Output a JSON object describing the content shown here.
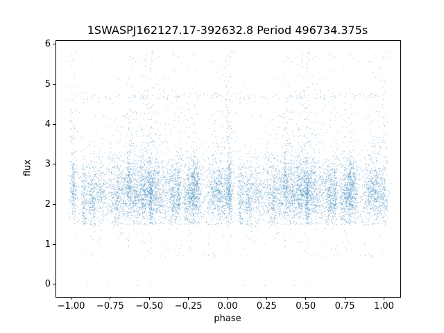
{
  "chart_data": {
    "type": "scatter",
    "title": "1SWASPJ162127.17-392632.8 Period 496734.375s",
    "xlabel": "phase",
    "ylabel": "flux",
    "xlim": [
      -1.1,
      1.1
    ],
    "ylim": [
      -0.3,
      6.1
    ],
    "x_ticks": [
      -1.0,
      -0.75,
      -0.5,
      -0.25,
      0.0,
      0.25,
      0.5,
      0.75,
      1.0
    ],
    "x_tick_labels": [
      "−1.00",
      "−0.75",
      "−0.50",
      "−0.25",
      "0.00",
      "0.25",
      "0.50",
      "0.75",
      "1.00"
    ],
    "y_ticks": [
      0,
      1,
      2,
      3,
      4,
      5,
      6
    ],
    "y_tick_labels": [
      "0",
      "1",
      "2",
      "3",
      "4",
      "5",
      "6"
    ],
    "marker_color": "#1f77b4",
    "marker_alpha": 0.5,
    "marker_size_px": 1,
    "phase_range_of_points": [
      -1.05,
      1.04
    ],
    "flux_dense_band": [
      1.5,
      3.2
    ],
    "flux_max_est": 5.85,
    "n_points_est": 12000,
    "point_generator": {
      "seed": 1337,
      "n_base": 6000,
      "n_clusters": 44,
      "cluster_sigma_range": [
        0.006,
        0.026
      ],
      "uniform_fraction": 0.2,
      "flux_base": 2.25,
      "flux_sigma": 0.36,
      "soft_floor": 1.5,
      "low_outlier_prob": 0.015,
      "low_outlier_range": [
        0.7,
        1.5
      ],
      "band_flux": 4.72,
      "band_points": 90,
      "zero_flux_phases": [
        0.1,
        0.23,
        0.42,
        0.5
      ]
    }
  }
}
